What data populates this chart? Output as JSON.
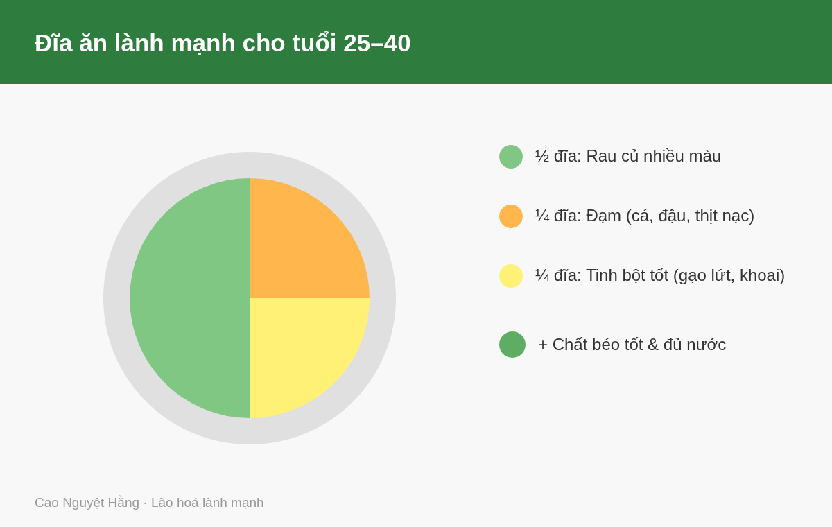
{
  "chart_data": {
    "type": "pie",
    "title": "Đĩa ăn lành mạnh cho tuổi 25–40",
    "categories": [
      "½ đĩa: Rau củ nhiều màu",
      "¼ đĩa: Đạm (cá, đậu, thịt nạc)",
      "¼ đĩa: Tinh bột tốt (gạo lứt, khoai)"
    ],
    "values": [
      50,
      25,
      25
    ],
    "colors": [
      "#81c784",
      "#ffb74d",
      "#fff176"
    ],
    "legend": "right",
    "annotations": [
      "+ Chất béo tốt & đủ nước",
      "Cao Nguyệt Hằng · Lão hoá lành mạnh"
    ]
  }
}
